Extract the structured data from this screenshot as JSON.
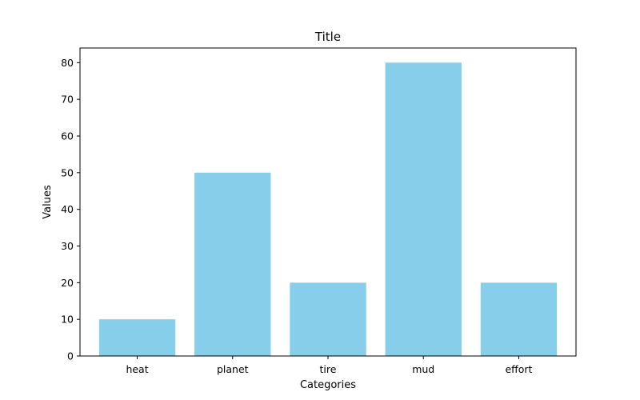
{
  "chart_data": {
    "type": "bar",
    "title": "Title",
    "xlabel": "Categories",
    "ylabel": "Values",
    "categories": [
      "heat",
      "planet",
      "tire",
      "mud",
      "effort"
    ],
    "values": [
      10,
      50,
      20,
      80,
      20
    ],
    "ylim": [
      0,
      84
    ],
    "yticks": [
      0,
      10,
      20,
      30,
      40,
      50,
      60,
      70,
      80
    ],
    "bar_color": "#87ceeb",
    "grid": false,
    "legend": "none"
  }
}
